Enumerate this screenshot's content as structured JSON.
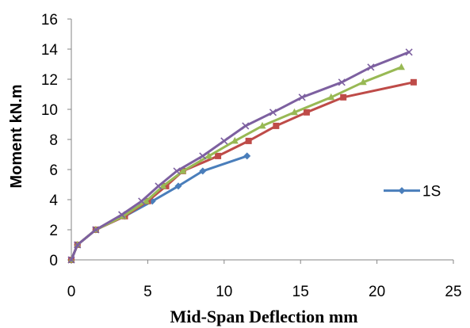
{
  "chart_data": {
    "type": "line",
    "title": "",
    "xlabel": "Mid-Span Deflection mm",
    "ylabel": "Moment kN.m",
    "xlim": [
      0,
      25
    ],
    "ylim": [
      0,
      16
    ],
    "x_ticks": [
      0,
      5,
      10,
      15,
      20,
      25
    ],
    "y_ticks": [
      0,
      2,
      4,
      6,
      8,
      10,
      12,
      14,
      16
    ],
    "grid": false,
    "legend": {
      "placement": "right",
      "entries": [
        "1S"
      ]
    },
    "series": [
      {
        "name": "1S",
        "color": "#4A7EBB",
        "marker": "diamond",
        "x": [
          0,
          0.4,
          1.6,
          3.5,
          5.3,
          7,
          8.6,
          11.5
        ],
        "y": [
          0,
          1,
          2,
          2.9,
          3.9,
          4.9,
          5.9,
          6.9
        ]
      },
      {
        "color": "#BE4B48",
        "marker": "square",
        "x": [
          0,
          0.4,
          1.6,
          3.5,
          5,
          6.2,
          7.3,
          9.6,
          11.6,
          13.4,
          15.4,
          17.8,
          22.4
        ],
        "y": [
          0,
          1,
          2,
          2.9,
          3.9,
          4.9,
          5.9,
          6.9,
          7.9,
          8.9,
          9.8,
          10.8,
          11.8
        ]
      },
      {
        "color": "#98B954",
        "marker": "triangle",
        "x": [
          0,
          0.4,
          1.6,
          3.4,
          4.9,
          6,
          7.3,
          9,
          10.7,
          12.5,
          14.6,
          17,
          19.1,
          21.6
        ],
        "y": [
          0,
          1,
          2,
          2.9,
          3.9,
          4.9,
          5.9,
          6.9,
          7.9,
          8.9,
          9.8,
          10.8,
          11.8,
          12.8
        ]
      },
      {
        "color": "#7D60A0",
        "marker": "x",
        "x": [
          0,
          0.4,
          1.6,
          3.3,
          4.6,
          5.7,
          6.9,
          8.6,
          10,
          11.4,
          13.2,
          15.1,
          17.7,
          19.6,
          22.1
        ],
        "y": [
          0,
          1,
          2,
          3,
          3.9,
          4.9,
          5.9,
          6.9,
          7.9,
          8.9,
          9.8,
          10.8,
          11.8,
          12.8,
          13.8
        ]
      }
    ]
  }
}
